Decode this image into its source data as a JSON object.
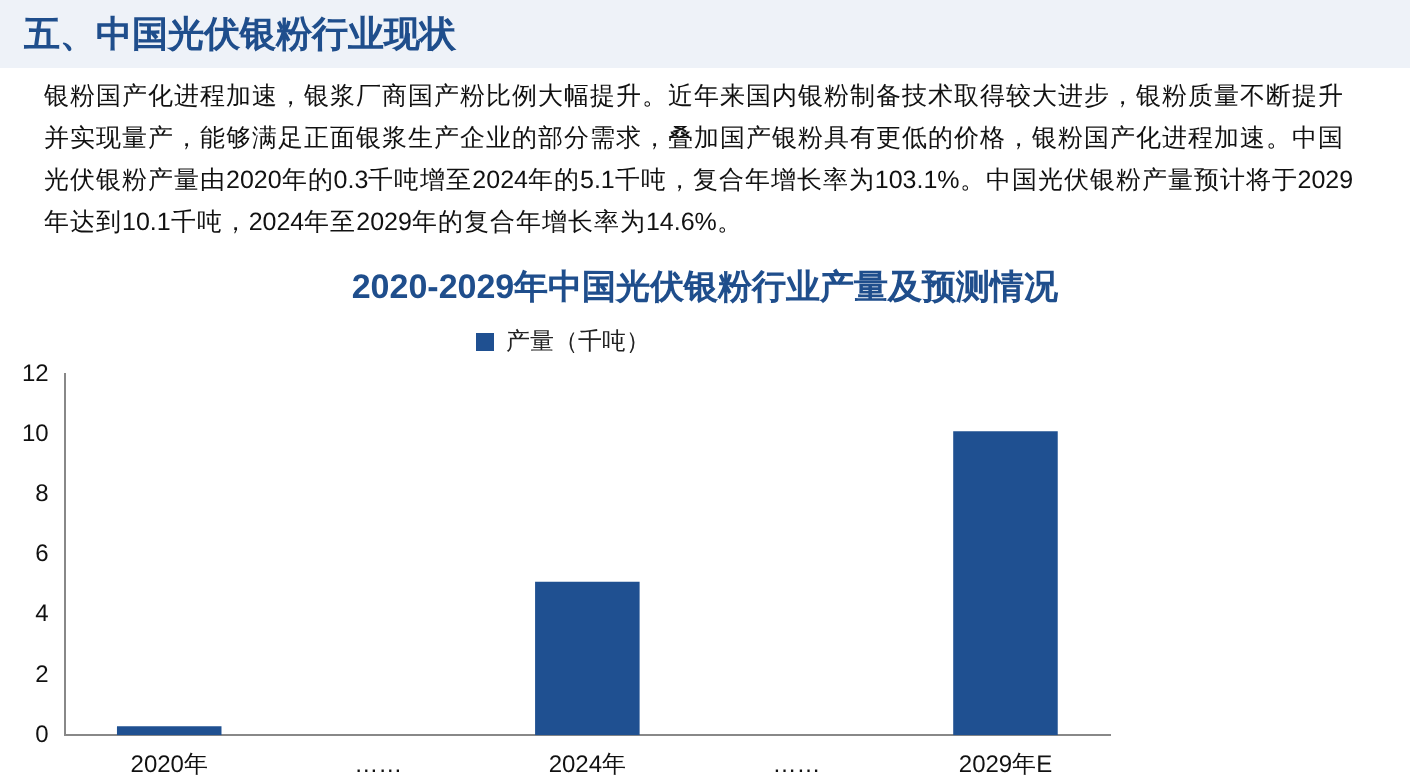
{
  "chart_data": {
    "type": "bar",
    "title": "2020-2029年中国光伏银粉行业产量及预测情况",
    "annotations": [
      "五、中国光伏银粉行业现状",
      "银粉国产化进程加速，银浆厂商国产粉比例大幅提升。近年来国内银粉制备技术取得较大进步，银粉质量不断提升并实现量产，能够满足正面银浆生产企业的部分需求，叠加国产银粉具有更低的价格，银粉国产化进程加速。中国光伏银粉产量由2020年的0.3千吨增至2024年的5.1千吨，复合年增长率为103.1%。中国光伏银粉产量预计将于2029年达到10.1千吨，2024年至2029年的复合年增长率为14.6%。"
    ],
    "categories": [
      "2020年",
      "……",
      "2024年",
      "……",
      "2029年E"
    ],
    "series": [
      {
        "name": "产量（千吨）",
        "color": "#1f5091",
        "values": [
          0.3,
          null,
          5.1,
          null,
          10.1
        ]
      }
    ],
    "ylim": [
      0,
      12
    ],
    "yticks": [
      0,
      2,
      4,
      6,
      8,
      10,
      12
    ],
    "grid": false,
    "legend": "top"
  }
}
